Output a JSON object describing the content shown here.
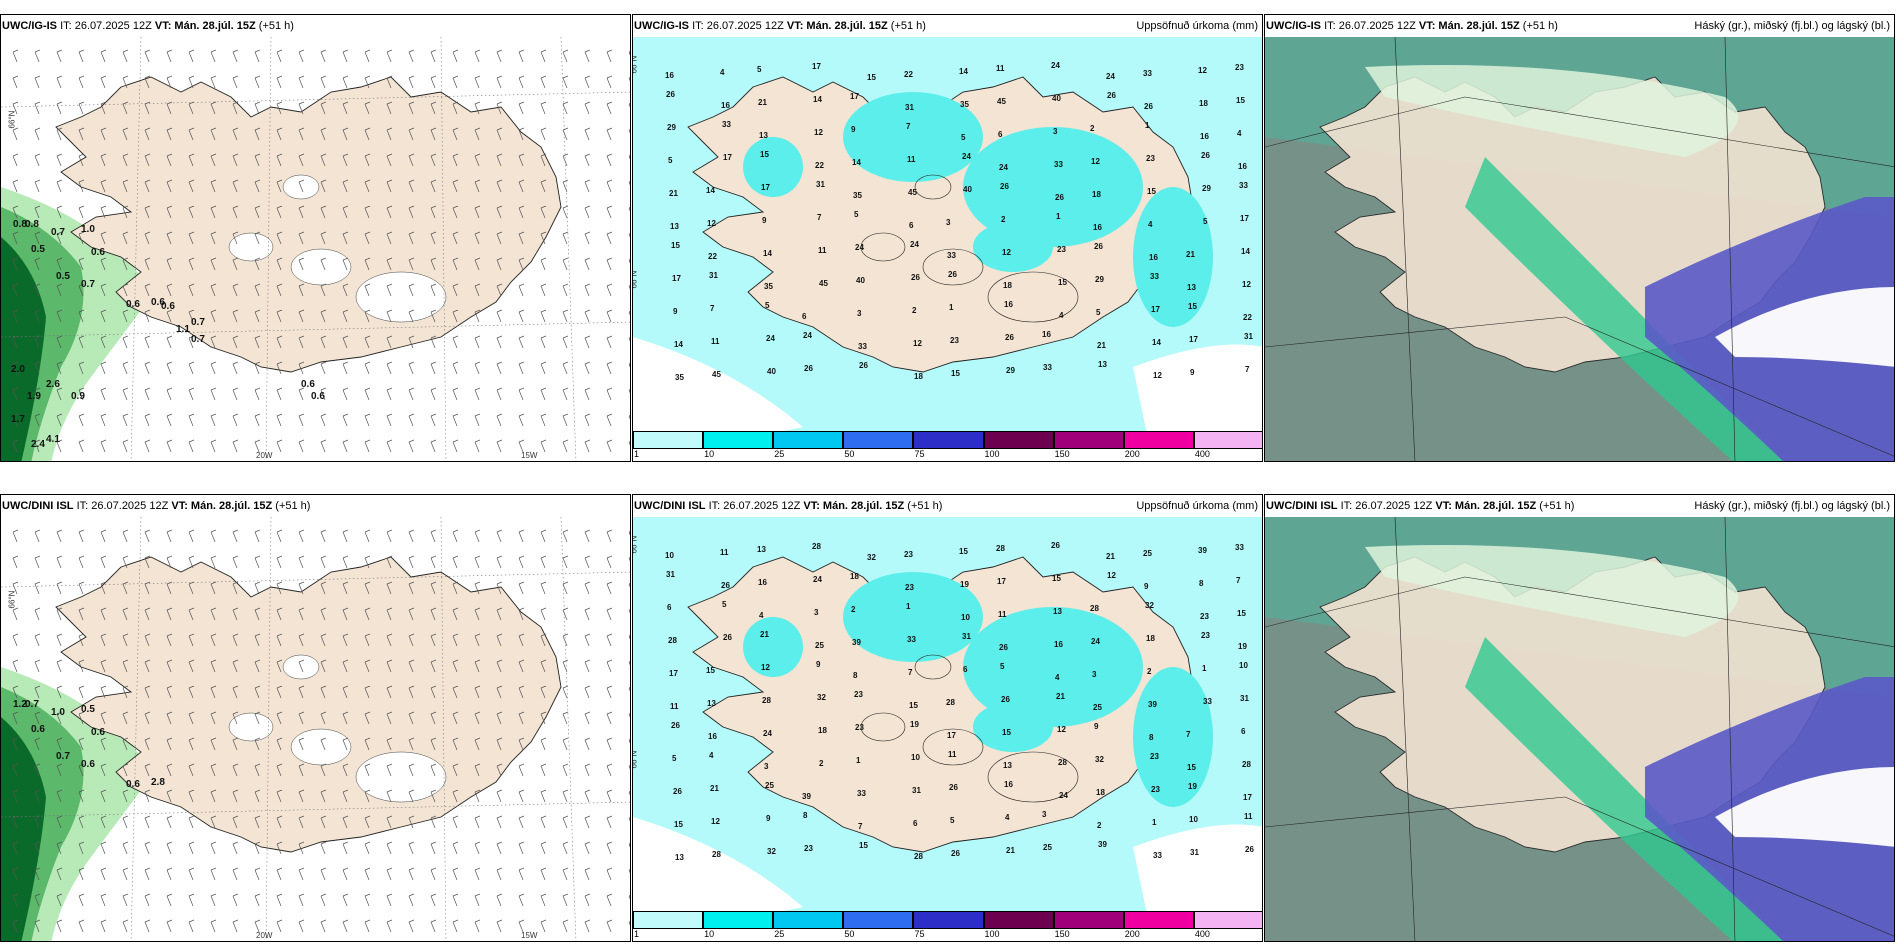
{
  "panels": [
    {
      "model": "UWC/IG-IS",
      "it": "IT: 26.07.2025 12Z",
      "vt_label": "VT:",
      "vt": "Mán. 28.júl. 15Z",
      "lead": "(+51 h)",
      "right_title": "",
      "kind": "wind",
      "precip_labels": [
        "0.8",
        "0.8",
        "0.7",
        "1.0",
        "0.5",
        "0.6",
        "0.5",
        "0.7",
        "0.6",
        "0.6",
        "0.6",
        "0.7",
        "1.1",
        "0.7",
        "2.0",
        "2.6",
        "1.9",
        "0.9",
        "1.7",
        "4.1",
        "2.4",
        "0.6",
        "0.6"
      ],
      "grid_labels": [
        "66°N",
        "20W",
        "15W"
      ]
    },
    {
      "model": "UWC/IG-IS",
      "it": "IT: 26.07.2025 12Z",
      "vt_label": "VT:",
      "vt": "Mán. 28.júl. 15Z",
      "lead": "(+51 h)",
      "right_title": "Uppsöfnuð úrkoma (mm)",
      "kind": "precip",
      "values": [
        "16",
        "4",
        "5",
        "17",
        "15",
        "22",
        "14",
        "11",
        "24",
        "24",
        "33",
        "12",
        "23",
        "26",
        "16",
        "21",
        "14",
        "17",
        "31",
        "35",
        "45",
        "40",
        "26",
        "26",
        "18",
        "15",
        "29",
        "33",
        "13",
        "12",
        "9",
        "7",
        "5",
        "6",
        "3",
        "2",
        "1"
      ],
      "grid_labels": [
        "66°N",
        "66°N"
      ]
    },
    {
      "model": "UWC/IG-IS",
      "it": "IT: 26.07.2025 12Z",
      "vt_label": "VT:",
      "vt": "Mán. 28.júl. 15Z",
      "lead": "(+51 h)",
      "right_title": "Háský (gr.), miðský (fj.bl.) og lágský (bl.)",
      "kind": "cloud"
    },
    {
      "model": "UWC/DINI ISL",
      "it": "IT: 26.07.2025 12Z",
      "vt_label": "VT:",
      "vt": "Mán. 28.júl. 15Z",
      "lead": "(+51 h)",
      "right_title": "",
      "kind": "wind",
      "precip_labels": [
        "1.2",
        "0.7",
        "1.0",
        "0.5",
        "0.6",
        "0.6",
        "0.7",
        "0.6",
        "0.6",
        "2.8"
      ],
      "grid_labels": [
        "66°N",
        "20W",
        "15W"
      ]
    },
    {
      "model": "UWC/DINI ISL",
      "it": "IT: 26.07.2025 12Z",
      "vt_label": "VT:",
      "vt": "Mán. 28.júl. 15Z",
      "lead": "(+51 h)",
      "right_title": "Uppsöfnuð úrkoma (mm)",
      "kind": "precip",
      "values": [
        "10",
        "11",
        "13",
        "28",
        "32",
        "23",
        "15",
        "28",
        "26",
        "21",
        "25",
        "39",
        "33",
        "31",
        "26",
        "16",
        "24",
        "18",
        "23",
        "19",
        "17",
        "15",
        "12",
        "9",
        "8",
        "7",
        "6",
        "5",
        "4",
        "3",
        "2",
        "1"
      ],
      "grid_labels": [
        "66°N",
        "66°N"
      ]
    },
    {
      "model": "UWC/DINI ISL",
      "it": "IT: 26.07.2025 12Z",
      "vt_label": "VT:",
      "vt": "Mán. 28.júl. 15Z",
      "lead": "(+51 h)",
      "right_title": "Háský (gr.), miðský (fj.bl.) og lágský (bl.)",
      "kind": "cloud"
    }
  ],
  "colorbar": {
    "labels": [
      "1",
      "10",
      "25",
      "50",
      "75",
      "100",
      "150",
      "200",
      "400"
    ],
    "colors": [
      "#c2fbfb",
      "#00f0f0",
      "#00c8f0",
      "#2e6cf0",
      "#2d2dc8",
      "#6e0050",
      "#a0007a",
      "#f000a0",
      "#f4b4f4"
    ]
  },
  "colors": {
    "land": "#f3e4d3",
    "precip_light": "#b4fafa",
    "precip_mid": "#5ceeea",
    "green_light": "#b8eab8",
    "green_mid": "#5cb86a",
    "green_dark": "#0a6a2a",
    "cloud_high_grey": "#7a8e86",
    "cloud_mid_green": "#30c890",
    "cloud_low_blue": "#5a5ac8"
  }
}
